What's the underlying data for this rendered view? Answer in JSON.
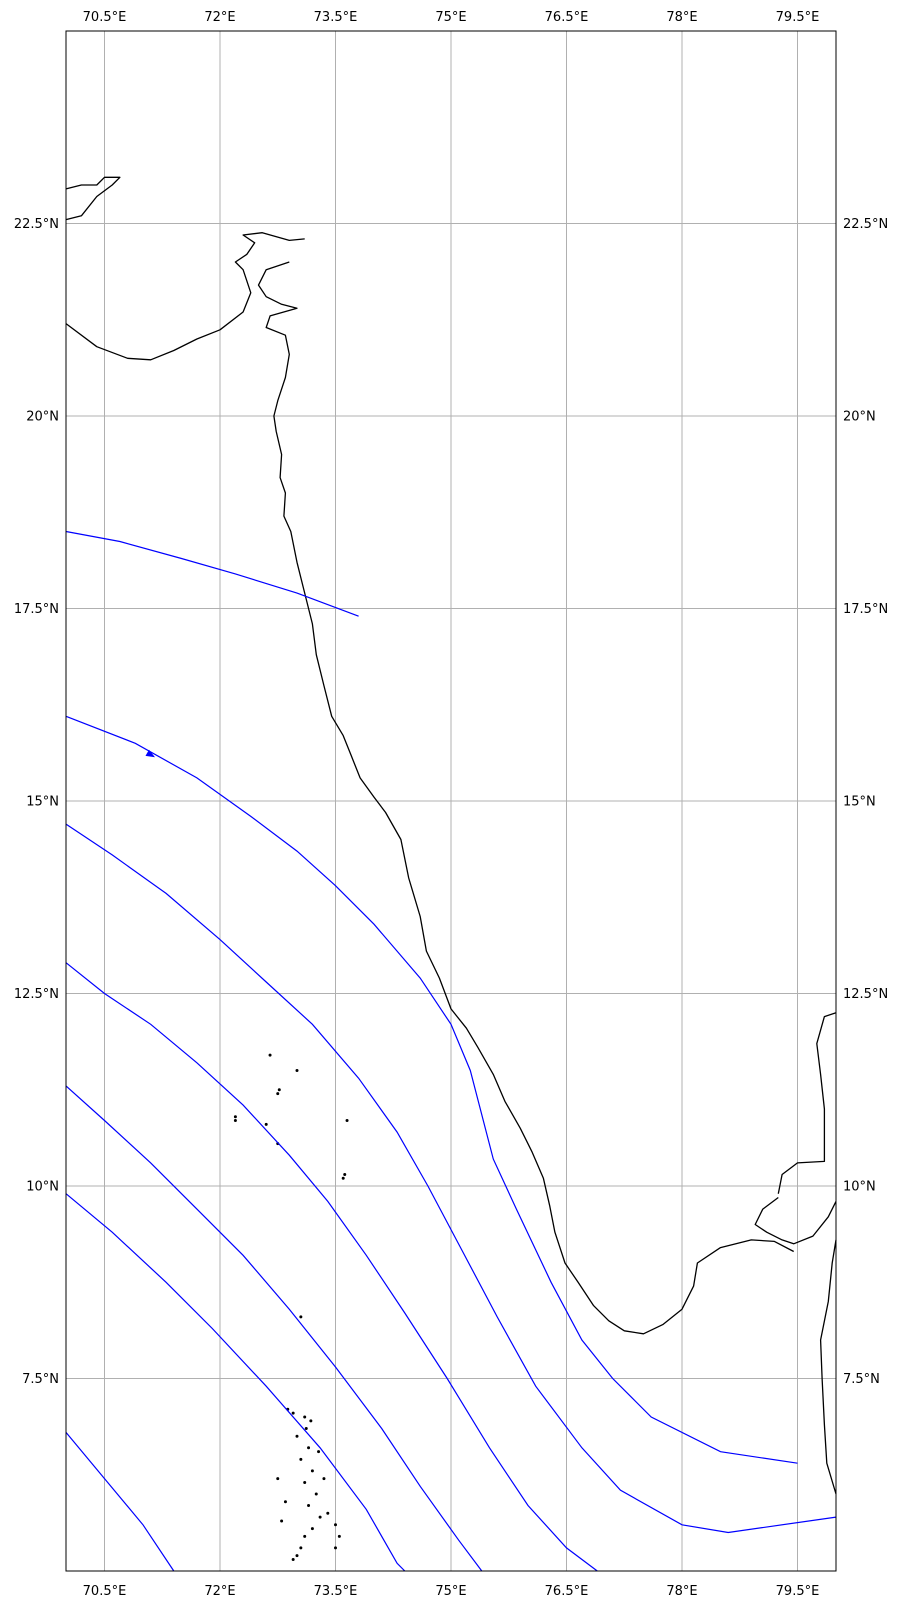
{
  "map": {
    "lon_range": [
      70,
      80
    ],
    "lat_range": [
      5,
      25
    ],
    "grid": true,
    "lon_ticks": [
      {
        "value": 70.5,
        "label": "70.5°E"
      },
      {
        "value": 72,
        "label": "72°E"
      },
      {
        "value": 73.5,
        "label": "73.5°E"
      },
      {
        "value": 75,
        "label": "75°E"
      },
      {
        "value": 76.5,
        "label": "76.5°E"
      },
      {
        "value": 78,
        "label": "78°E"
      },
      {
        "value": 79.5,
        "label": "79.5°E"
      }
    ],
    "lat_ticks": [
      {
        "value": 7.5,
        "label": "7.5°N"
      },
      {
        "value": 10,
        "label": "10°N"
      },
      {
        "value": 12.5,
        "label": "12.5°N"
      },
      {
        "value": 15,
        "label": "15°N"
      },
      {
        "value": 17.5,
        "label": "17.5°N"
      },
      {
        "value": 20,
        "label": "20°N"
      },
      {
        "value": 22.5,
        "label": "22.5°N"
      }
    ],
    "line_color": "#0000ff",
    "coast_color": "#000000",
    "streamlines": [
      [
        [
          70,
          18.5
        ],
        [
          70.7,
          18.37
        ],
        [
          71.5,
          18.15
        ],
        [
          72.2,
          17.95
        ],
        [
          73,
          17.7
        ],
        [
          73.8,
          17.4
        ]
      ],
      [
        [
          70,
          16.1
        ],
        [
          70.9,
          15.75
        ],
        [
          71.7,
          15.3
        ],
        [
          72.4,
          14.8
        ],
        [
          73,
          14.35
        ],
        [
          73.5,
          13.9
        ],
        [
          74,
          13.4
        ],
        [
          74.6,
          12.7
        ],
        [
          75,
          12.1
        ],
        [
          75.25,
          11.5
        ],
        [
          75.55,
          10.35
        ],
        [
          75.85,
          9.7
        ],
        [
          76.3,
          8.75
        ],
        [
          76.7,
          8
        ],
        [
          77.1,
          7.5
        ],
        [
          77.6,
          7
        ],
        [
          78.5,
          6.55
        ],
        [
          79.5,
          6.4
        ]
      ],
      [
        [
          70,
          14.7
        ],
        [
          70.6,
          14.3
        ],
        [
          71.3,
          13.8
        ],
        [
          72,
          13.2
        ],
        [
          72.6,
          12.65
        ],
        [
          73.2,
          12.1
        ],
        [
          73.8,
          11.4
        ],
        [
          74.3,
          10.7
        ],
        [
          74.7,
          10
        ],
        [
          75.15,
          9.15
        ],
        [
          75.6,
          8.3
        ],
        [
          76.1,
          7.4
        ],
        [
          76.7,
          6.6
        ],
        [
          77.2,
          6.05
        ],
        [
          78,
          5.6
        ],
        [
          78.6,
          5.5
        ],
        [
          80,
          5.7
        ]
      ],
      [
        [
          70,
          12.9
        ],
        [
          70.5,
          12.5
        ],
        [
          71.1,
          12.1
        ],
        [
          71.7,
          11.6
        ],
        [
          72.3,
          11.05
        ],
        [
          72.9,
          10.4
        ],
        [
          73.4,
          9.8
        ],
        [
          73.9,
          9.1
        ],
        [
          74.4,
          8.35
        ],
        [
          74.95,
          7.5
        ],
        [
          75.5,
          6.6
        ],
        [
          76,
          5.85
        ],
        [
          76.5,
          5.3
        ],
        [
          76.9,
          5
        ]
      ],
      [
        [
          70,
          11.3
        ],
        [
          70.5,
          10.85
        ],
        [
          71.1,
          10.3
        ],
        [
          71.7,
          9.7
        ],
        [
          72.3,
          9.1
        ],
        [
          72.9,
          8.4
        ],
        [
          73.5,
          7.65
        ],
        [
          74.1,
          6.85
        ],
        [
          74.6,
          6.1
        ],
        [
          75.1,
          5.4
        ],
        [
          75.4,
          5
        ]
      ],
      [
        [
          70,
          9.9
        ],
        [
          70.6,
          9.4
        ],
        [
          71.3,
          8.75
        ],
        [
          71.9,
          8.15
        ],
        [
          72.6,
          7.4
        ],
        [
          73.3,
          6.6
        ],
        [
          73.9,
          5.8
        ],
        [
          74.3,
          5.1
        ],
        [
          74.4,
          5
        ]
      ],
      [
        [
          70,
          6.8
        ],
        [
          70.5,
          6.2
        ],
        [
          71,
          5.6
        ],
        [
          71.4,
          5
        ]
      ]
    ],
    "arrow": {
      "lon": 71.1,
      "lat": 15.6,
      "angle_deg": 30
    },
    "coastlines": [
      [
        [
          70,
          21.2
        ],
        [
          70.4,
          20.9
        ],
        [
          70.8,
          20.75
        ],
        [
          71.1,
          20.73
        ],
        [
          71.4,
          20.85
        ],
        [
          71.7,
          21.0
        ],
        [
          72.0,
          21.12
        ],
        [
          72.3,
          21.35
        ],
        [
          72.4,
          21.6
        ],
        [
          72.3,
          21.9
        ],
        [
          72.2,
          22.0
        ],
        [
          72.35,
          22.1
        ],
        [
          72.45,
          22.25
        ],
        [
          72.3,
          22.35
        ],
        [
          72.55,
          22.38
        ],
        [
          72.9,
          22.28
        ],
        [
          73.1,
          22.3
        ]
      ],
      [
        [
          72.9,
          22.0
        ],
        [
          72.6,
          21.9
        ],
        [
          72.5,
          21.7
        ],
        [
          72.6,
          21.55
        ],
        [
          72.8,
          21.45
        ],
        [
          73.0,
          21.4
        ],
        [
          72.65,
          21.3
        ],
        [
          72.6,
          21.15
        ],
        [
          72.85,
          21.05
        ],
        [
          72.9,
          20.8
        ],
        [
          72.85,
          20.5
        ],
        [
          72.75,
          20.2
        ],
        [
          72.7,
          20.0
        ],
        [
          72.73,
          19.8
        ],
        [
          72.8,
          19.5
        ],
        [
          72.78,
          19.2
        ],
        [
          72.85,
          19.0
        ],
        [
          72.83,
          18.7
        ],
        [
          72.92,
          18.5
        ],
        [
          73.0,
          18.1
        ],
        [
          73.1,
          17.7
        ],
        [
          73.2,
          17.3
        ],
        [
          73.25,
          16.9
        ],
        [
          73.35,
          16.5
        ],
        [
          73.45,
          16.1
        ],
        [
          73.6,
          15.85
        ],
        [
          73.7,
          15.6
        ],
        [
          73.82,
          15.3
        ],
        [
          74.0,
          15.05
        ],
        [
          74.15,
          14.85
        ],
        [
          74.35,
          14.5
        ],
        [
          74.45,
          14.0
        ],
        [
          74.6,
          13.5
        ],
        [
          74.68,
          13.05
        ],
        [
          74.85,
          12.7
        ],
        [
          75.0,
          12.3
        ],
        [
          75.2,
          12.05
        ],
        [
          75.35,
          11.8
        ],
        [
          75.55,
          11.45
        ],
        [
          75.7,
          11.1
        ],
        [
          75.9,
          10.75
        ],
        [
          76.05,
          10.45
        ],
        [
          76.2,
          10.1
        ],
        [
          76.28,
          9.75
        ],
        [
          76.35,
          9.4
        ],
        [
          76.48,
          9.0
        ],
        [
          76.65,
          8.75
        ],
        [
          76.85,
          8.45
        ],
        [
          77.05,
          8.25
        ],
        [
          77.25,
          8.12
        ],
        [
          77.5,
          8.08
        ],
        [
          77.75,
          8.2
        ],
        [
          78.0,
          8.4
        ],
        [
          78.15,
          8.7
        ],
        [
          78.2,
          9.0
        ],
        [
          78.5,
          9.2
        ],
        [
          78.9,
          9.3
        ],
        [
          79.2,
          9.28
        ],
        [
          79.45,
          9.15
        ]
      ],
      [
        [
          79.25,
          9.85
        ],
        [
          79.05,
          9.7
        ],
        [
          78.95,
          9.5
        ],
        [
          79.1,
          9.4
        ],
        [
          79.3,
          9.3
        ],
        [
          79.45,
          9.25
        ],
        [
          79.7,
          9.35
        ],
        [
          79.9,
          9.6
        ],
        [
          80,
          9.8
        ]
      ],
      [
        [
          79.25,
          9.9
        ],
        [
          79.3,
          10.15
        ],
        [
          79.5,
          10.3
        ],
        [
          79.85,
          10.32
        ],
        [
          79.85,
          10.6
        ],
        [
          79.85,
          11.0
        ],
        [
          79.8,
          11.45
        ],
        [
          79.75,
          11.85
        ],
        [
          79.85,
          12.2
        ],
        [
          80,
          12.25
        ]
      ],
      [
        [
          80,
          6.0
        ],
        [
          79.88,
          6.4
        ],
        [
          79.85,
          6.9
        ],
        [
          79.82,
          7.5
        ],
        [
          79.8,
          8.0
        ],
        [
          79.9,
          8.5
        ],
        [
          79.95,
          9.0
        ],
        [
          80,
          9.3
        ]
      ],
      [
        [
          70,
          22.55
        ],
        [
          70.2,
          22.6
        ],
        [
          70.4,
          22.85
        ],
        [
          70.6,
          23.0
        ],
        [
          70.7,
          23.1
        ],
        [
          70.5,
          23.1
        ],
        [
          70.4,
          23.0
        ],
        [
          70.2,
          23.0
        ],
        [
          70,
          22.95
        ]
      ]
    ],
    "islands": [
      [
        73.05,
        8.3
      ],
      [
        72.2,
        10.9
      ],
      [
        72.2,
        10.85
      ],
      [
        72.75,
        10.55
      ],
      [
        72.6,
        10.8
      ],
      [
        72.75,
        11.2
      ],
      [
        72.77,
        11.25
      ],
      [
        72.65,
        11.7
      ],
      [
        73.0,
        11.5
      ],
      [
        73.65,
        10.85
      ],
      [
        73.6,
        10.1
      ],
      [
        73.62,
        10.15
      ],
      [
        72.88,
        7.1
      ],
      [
        72.95,
        7.05
      ],
      [
        73.1,
        7.0
      ],
      [
        73.12,
        6.85
      ],
      [
        73.0,
        6.75
      ],
      [
        73.15,
        6.6
      ],
      [
        73.05,
        6.45
      ],
      [
        73.2,
        6.3
      ],
      [
        73.1,
        6.15
      ],
      [
        73.25,
        6.0
      ],
      [
        73.15,
        5.85
      ],
      [
        73.3,
        5.7
      ],
      [
        73.2,
        5.55
      ],
      [
        73.1,
        5.45
      ],
      [
        73.05,
        5.3
      ],
      [
        73.0,
        5.2
      ],
      [
        73.5,
        5.3
      ],
      [
        73.55,
        5.45
      ],
      [
        73.5,
        5.6
      ],
      [
        73.4,
        5.75
      ],
      [
        72.85,
        5.9
      ],
      [
        72.95,
        5.15
      ],
      [
        72.75,
        6.2
      ],
      [
        72.8,
        5.65
      ],
      [
        73.35,
        6.2
      ],
      [
        73.28,
        6.55
      ],
      [
        73.18,
        6.95
      ]
    ]
  }
}
